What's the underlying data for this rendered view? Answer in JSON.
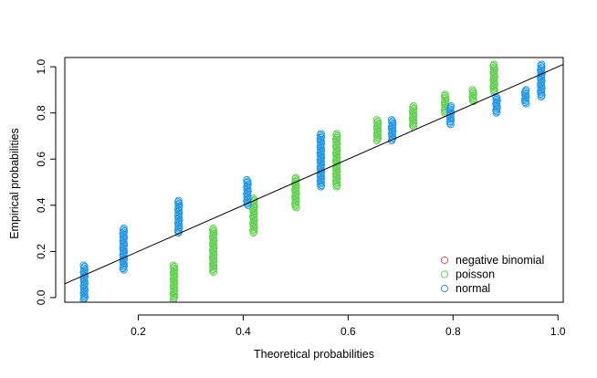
{
  "chart_data": {
    "type": "scatter",
    "title": "",
    "xlabel": "Theoretical probabilities",
    "ylabel": "Empirical probabilities",
    "xlim": [
      0.06,
      1.01
    ],
    "ylim": [
      -0.02,
      1.04
    ],
    "xticks": [
      0.2,
      0.4,
      0.6,
      0.8,
      1.0
    ],
    "xtick_labels": [
      "0.2",
      "0.4",
      "0.6",
      "0.8",
      "1.0"
    ],
    "yticks": [
      0.0,
      0.2,
      0.4,
      0.6,
      0.8,
      1.0
    ],
    "ytick_labels": [
      "0.0",
      "0.2",
      "0.4",
      "0.6",
      "0.8",
      "1.0"
    ],
    "reference_line": {
      "intercept": 0,
      "slope": 1
    },
    "legend_position": "bottom-right",
    "series": [
      {
        "name": "negative binomial",
        "color": "#DF536B",
        "columns": []
      },
      {
        "name": "poisson",
        "color": "#61D04F",
        "columns": [
          {
            "x": 0.268,
            "ymin": -0.01,
            "ymax": 0.14
          },
          {
            "x": 0.343,
            "ymin": 0.11,
            "ymax": 0.3
          },
          {
            "x": 0.42,
            "ymin": 0.28,
            "ymax": 0.43
          },
          {
            "x": 0.5,
            "ymin": 0.39,
            "ymax": 0.52
          },
          {
            "x": 0.578,
            "ymin": 0.48,
            "ymax": 0.71
          },
          {
            "x": 0.656,
            "ymin": 0.68,
            "ymax": 0.77
          },
          {
            "x": 0.724,
            "ymin": 0.74,
            "ymax": 0.83
          },
          {
            "x": 0.785,
            "ymin": 0.8,
            "ymax": 0.88
          },
          {
            "x": 0.838,
            "ymin": 0.85,
            "ymax": 0.9
          },
          {
            "x": 0.878,
            "ymin": 0.89,
            "ymax": 1.01
          }
        ]
      },
      {
        "name": "normal",
        "color": "#2297E6",
        "columns": [
          {
            "x": 0.097,
            "ymin": -0.01,
            "ymax": 0.14
          },
          {
            "x": 0.172,
            "ymin": 0.12,
            "ymax": 0.3
          },
          {
            "x": 0.277,
            "ymin": 0.28,
            "ymax": 0.42
          },
          {
            "x": 0.408,
            "ymin": 0.4,
            "ymax": 0.51
          },
          {
            "x": 0.548,
            "ymin": 0.48,
            "ymax": 0.71
          },
          {
            "x": 0.684,
            "ymin": 0.68,
            "ymax": 0.77
          },
          {
            "x": 0.795,
            "ymin": 0.75,
            "ymax": 0.83
          },
          {
            "x": 0.883,
            "ymin": 0.8,
            "ymax": 0.87
          },
          {
            "x": 0.938,
            "ymin": 0.84,
            "ymax": 0.9
          },
          {
            "x": 0.968,
            "ymin": 0.87,
            "ymax": 1.01
          }
        ]
      }
    ]
  }
}
